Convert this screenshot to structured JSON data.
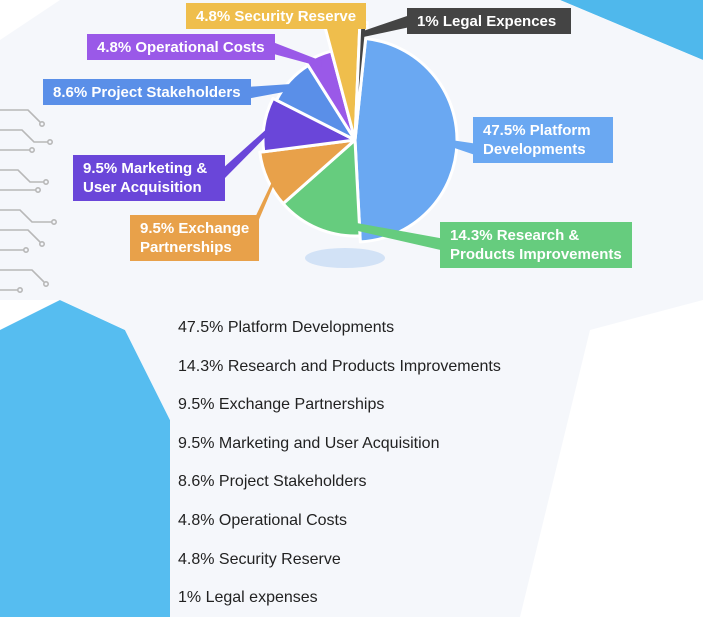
{
  "chart_data": {
    "type": "pie",
    "title": "",
    "slices": [
      {
        "label_lines": [
          "47.5% Platform",
          "Developments"
        ],
        "value": 47.5,
        "color": "#6aa8f2"
      },
      {
        "label_lines": [
          "14.3% Research &",
          "Products Improvements"
        ],
        "value": 14.3,
        "color": "#66cc7e"
      },
      {
        "label_lines": [
          "9.5% Exchange",
          "Partnerships"
        ],
        "value": 9.5,
        "color": "#e8a14a"
      },
      {
        "label_lines": [
          "9.5% Marketing &",
          "User Acquisition"
        ],
        "value": 9.5,
        "color": "#6a46d9"
      },
      {
        "label_lines": [
          "8.6% Project Stakeholders"
        ],
        "value": 8.6,
        "color": "#5a8fe8"
      },
      {
        "label_lines": [
          "4.8% Operational Costs"
        ],
        "value": 4.8,
        "color": "#9a59e8"
      },
      {
        "label_lines": [
          "4.8% Security Reserve"
        ],
        "value": 4.8,
        "color": "#efbe4c"
      },
      {
        "label_lines": [
          "1% Legal Expences"
        ],
        "value": 1,
        "color": "#444444"
      }
    ],
    "legend_list": [
      "47.5% Platform Developments",
      "14.3% Research and Products Improvements",
      "9.5% Exchange Partnerships",
      "9.5% Marketing and User Acquisition",
      "8.6% Project Stakeholders",
      "4.8% Operational Costs",
      "4.8% Security Reserve",
      "1% Legal expenses"
    ]
  }
}
